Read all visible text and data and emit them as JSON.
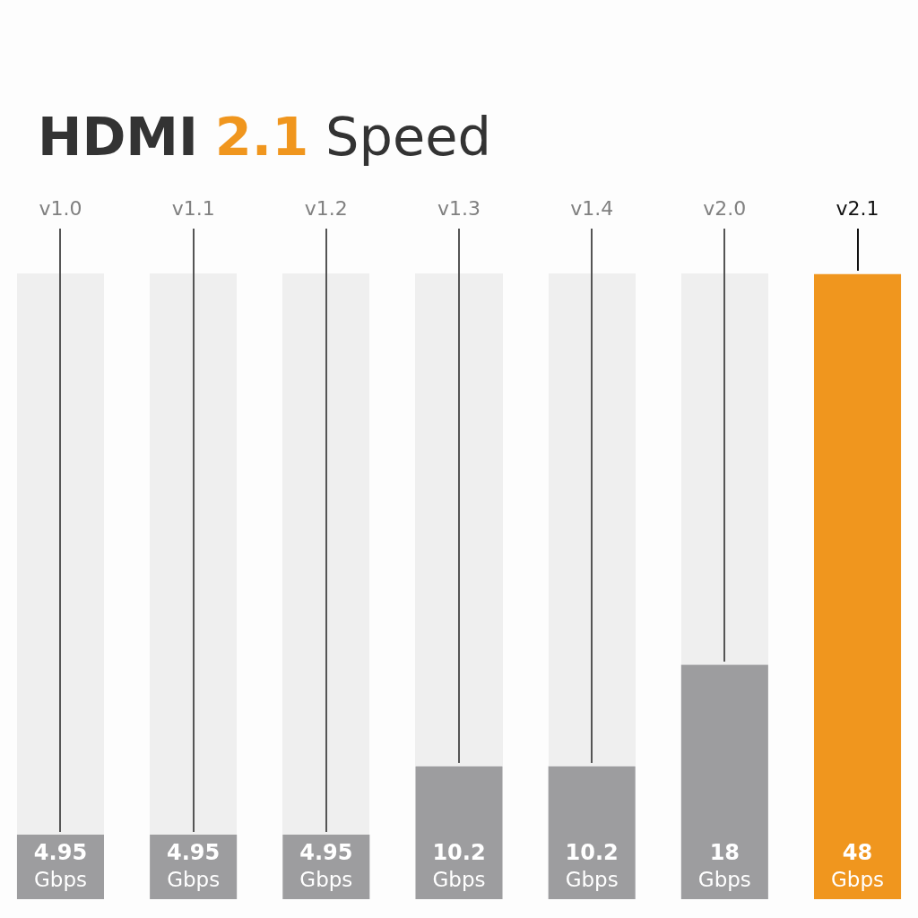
{
  "chart_data": {
    "type": "bar",
    "title": "HDMI 2.1 Speed",
    "categories": [
      "v1.0",
      "v1.1",
      "v1.2",
      "v1.3",
      "v1.4",
      "v2.0",
      "v2.1"
    ],
    "values": [
      4.95,
      4.95,
      4.95,
      10.2,
      10.2,
      18,
      48
    ],
    "colors": [
      "#9d9d9f",
      "#9d9d9f",
      "#9d9d9f",
      "#9d9d9f",
      "#9d9d9f",
      "#9d9d9f",
      "#f0961e"
    ],
    "value_labels": [
      "4.95 Gbps",
      "4.95 Gbps",
      "4.95 Gbps",
      "10.2 Gbps",
      "10.2 Gbps",
      "18 Gbps",
      "48 Gbps"
    ],
    "ylim": [
      0,
      48
    ],
    "tick_labels": "x"
  }
}
